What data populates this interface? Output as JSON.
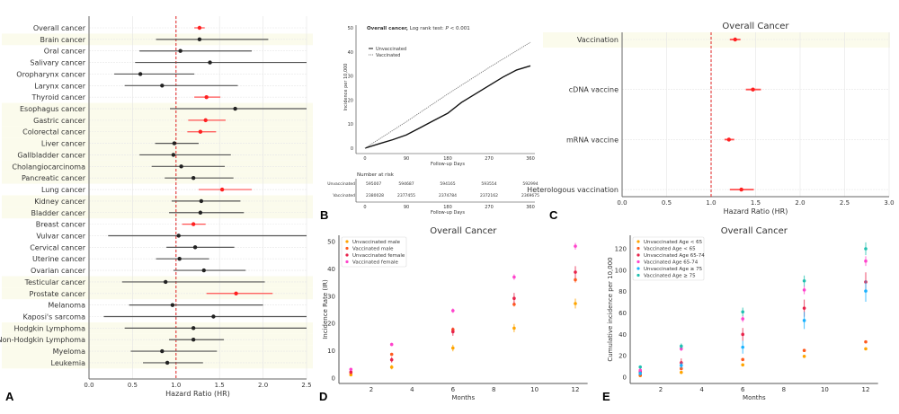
{
  "chart_data": [
    {
      "panel": "A",
      "type": "forest",
      "xlabel": "Hazard Ratio (HR)",
      "xlim": [
        0,
        2.5
      ],
      "xticks": [
        "0.0",
        "0.5",
        "1.0",
        "1.5",
        "2.0",
        "2.5"
      ],
      "reference_line": 1.0,
      "grid": true,
      "colors": {
        "significant": "#ff0000",
        "nonsignificant": "#000000",
        "band": "#fbfbee"
      },
      "rows": [
        {
          "label": "Overall cancer",
          "hr": 1.27,
          "lo": 1.21,
          "hi": 1.33,
          "sig": true,
          "band": false
        },
        {
          "label": "Brain cancer",
          "hr": 1.27,
          "lo": 0.77,
          "hi": 2.06,
          "sig": false,
          "band": true
        },
        {
          "label": "Oral cancer",
          "hr": 1.05,
          "lo": 0.58,
          "hi": 1.87,
          "sig": false,
          "band": false
        },
        {
          "label": "Salivary cancer",
          "hr": 1.39,
          "lo": 0.53,
          "hi": 2.5,
          "sig": false,
          "band": false
        },
        {
          "label": "Oropharynx cancer",
          "hr": 0.59,
          "lo": 0.29,
          "hi": 1.21,
          "sig": false,
          "band": false
        },
        {
          "label": "Larynx cancer",
          "hr": 0.84,
          "lo": 0.41,
          "hi": 1.71,
          "sig": false,
          "band": false
        },
        {
          "label": "Thyroid cancer",
          "hr": 1.35,
          "lo": 1.21,
          "hi": 1.51,
          "sig": true,
          "band": false
        },
        {
          "label": "Esophagus cancer",
          "hr": 1.68,
          "lo": 0.93,
          "hi": 2.5,
          "sig": false,
          "band": true
        },
        {
          "label": "Gastric cancer",
          "hr": 1.34,
          "lo": 1.14,
          "hi": 1.57,
          "sig": true,
          "band": true
        },
        {
          "label": "Colorectal cancer",
          "hr": 1.28,
          "lo": 1.13,
          "hi": 1.46,
          "sig": true,
          "band": true
        },
        {
          "label": "Liver cancer",
          "hr": 0.98,
          "lo": 0.76,
          "hi": 1.26,
          "sig": false,
          "band": true
        },
        {
          "label": "Gallbladder cancer",
          "hr": 0.97,
          "lo": 0.58,
          "hi": 1.63,
          "sig": false,
          "band": true
        },
        {
          "label": "Cholangiocarcinoma",
          "hr": 1.06,
          "lo": 0.72,
          "hi": 1.56,
          "sig": false,
          "band": true
        },
        {
          "label": "Pancreatic cancer",
          "hr": 1.2,
          "lo": 0.87,
          "hi": 1.66,
          "sig": false,
          "band": true
        },
        {
          "label": "Lung cancer",
          "hr": 1.53,
          "lo": 1.26,
          "hi": 1.87,
          "sig": true,
          "band": false
        },
        {
          "label": "Kidney cancer",
          "hr": 1.29,
          "lo": 0.95,
          "hi": 1.74,
          "sig": false,
          "band": true
        },
        {
          "label": "Bladder cancer",
          "hr": 1.28,
          "lo": 0.92,
          "hi": 1.78,
          "sig": false,
          "band": true
        },
        {
          "label": "Breast cancer",
          "hr": 1.2,
          "lo": 1.07,
          "hi": 1.34,
          "sig": true,
          "band": false
        },
        {
          "label": "Vulvar cancer",
          "hr": 1.03,
          "lo": 0.22,
          "hi": 2.5,
          "sig": false,
          "band": false
        },
        {
          "label": "Cervical cancer",
          "hr": 1.22,
          "lo": 0.89,
          "hi": 1.67,
          "sig": false,
          "band": false
        },
        {
          "label": "Uterine cancer",
          "hr": 1.04,
          "lo": 0.77,
          "hi": 1.38,
          "sig": false,
          "band": false
        },
        {
          "label": "Ovarian cancer",
          "hr": 1.32,
          "lo": 0.97,
          "hi": 1.8,
          "sig": false,
          "band": false
        },
        {
          "label": "Testicular cancer",
          "hr": 0.88,
          "lo": 0.38,
          "hi": 2.02,
          "sig": false,
          "band": true
        },
        {
          "label": "Prostate cancer",
          "hr": 1.69,
          "lo": 1.35,
          "hi": 2.11,
          "sig": true,
          "band": true
        },
        {
          "label": "Melanoma",
          "hr": 0.96,
          "lo": 0.46,
          "hi": 2.0,
          "sig": false,
          "band": false
        },
        {
          "label": "Kaposi's sarcoma",
          "hr": 1.43,
          "lo": 0.17,
          "hi": 2.5,
          "sig": false,
          "band": false
        },
        {
          "label": "Hodgkin Lymphoma",
          "hr": 1.2,
          "lo": 0.41,
          "hi": 2.5,
          "sig": false,
          "band": true
        },
        {
          "label": "Non-Hodgkin Lymphoma",
          "hr": 1.2,
          "lo": 0.92,
          "hi": 1.55,
          "sig": false,
          "band": true
        },
        {
          "label": "Myeloma",
          "hr": 0.84,
          "lo": 0.48,
          "hi": 1.47,
          "sig": false,
          "band": true
        },
        {
          "label": "Leukemia",
          "hr": 0.9,
          "lo": 0.62,
          "hi": 1.31,
          "sig": false,
          "band": true
        }
      ]
    },
    {
      "panel": "B",
      "type": "line",
      "title_bold": "Overall cancer,",
      "title_rest": " Log rank test: ",
      "title_p": "P",
      "title_pval": " < 0.001",
      "xlabel": "Follow-up Days",
      "ylabel": "Incidence per 10,000",
      "xlim": [
        0,
        360
      ],
      "ylim": [
        0,
        50
      ],
      "xticks": [
        "0",
        "90",
        "180",
        "270",
        "360"
      ],
      "yticks": [
        "0",
        "10",
        "20",
        "30",
        "40",
        "50"
      ],
      "legend": "top-left",
      "series": [
        {
          "name": "Unvaccinated",
          "style": "solid",
          "x": [
            0,
            30,
            60,
            90,
            120,
            150,
            180,
            210,
            240,
            270,
            300,
            330,
            360
          ],
          "y": [
            0,
            1.8,
            3.5,
            5.5,
            8.5,
            11.5,
            14.5,
            19,
            22.5,
            26,
            29.5,
            32.5,
            34.2
          ]
        },
        {
          "name": "Vaccinated",
          "style": "dotted",
          "x": [
            0,
            90,
            180,
            270,
            360
          ],
          "y": [
            0,
            11,
            22.5,
            33.5,
            44
          ]
        }
      ],
      "risk_table": {
        "title": "Number at risk",
        "xlabel": "Follow-up Days",
        "rows": [
          {
            "label": "Unvaccinated",
            "values": [
              "595007",
              "594687",
              "594165",
              "593554",
              "592994"
            ]
          },
          {
            "label": "Vaccinated",
            "values": [
              "2380028",
              "2377455",
              "2374784",
              "2372162",
              "2369675"
            ]
          }
        ]
      }
    },
    {
      "panel": "C",
      "type": "forest",
      "title": "Overall Cancer",
      "xlabel": "Hazard Ratio (HR)",
      "xlim": [
        0,
        3.0
      ],
      "xticks": [
        "0.0",
        "0.5",
        "1.0",
        "1.5",
        "2.0",
        "2.5",
        "3.0"
      ],
      "reference_line": 1.0,
      "grid": true,
      "rows": [
        {
          "label": "Vaccination",
          "hr": 1.27,
          "lo": 1.21,
          "hi": 1.33,
          "band": true
        },
        {
          "label": "cDNA vaccine",
          "hr": 1.47,
          "lo": 1.39,
          "hi": 1.56,
          "band": false
        },
        {
          "label": "mRNA vaccine",
          "hr": 1.2,
          "lo": 1.15,
          "hi": 1.26,
          "band": false
        },
        {
          "label": "Heterologous vaccination",
          "hr": 1.34,
          "lo": 1.21,
          "hi": 1.48,
          "band": false
        }
      ]
    },
    {
      "panel": "D",
      "type": "scatter",
      "title": "Overall Cancer",
      "xlabel": "Months",
      "ylabel": "Incidence Rate (IR)",
      "xlim": [
        0.5,
        12.5
      ],
      "ylim": [
        0,
        50
      ],
      "xticks": [
        "2",
        "4",
        "6",
        "8",
        "10",
        "12"
      ],
      "yticks": [
        "0",
        "10",
        "20",
        "30",
        "40",
        "50"
      ],
      "legend": "top-left",
      "x": [
        1,
        3,
        6,
        9,
        12
      ],
      "series": [
        {
          "name": "Unvaccinated male",
          "color": "#ffa500",
          "y": [
            1.2,
            4,
            11,
            18.3,
            27.3
          ],
          "err": [
            0.5,
            0.8,
            1.2,
            1.5,
            1.8
          ]
        },
        {
          "name": "Vaccinated male",
          "color": "#ff5a1f",
          "y": [
            2,
            8.7,
            17.8,
            27,
            36
          ],
          "err": [
            0.3,
            0.5,
            0.7,
            0.8,
            1
          ]
        },
        {
          "name": "Unvaccinated female",
          "color": "#e8234a",
          "y": [
            2.2,
            6.7,
            17,
            29.2,
            38.8
          ],
          "err": [
            0.6,
            1,
            1.5,
            2,
            2.2
          ]
        },
        {
          "name": "Vaccinated female",
          "color": "#ff44cc",
          "y": [
            3.2,
            12.3,
            24.7,
            37,
            48.3
          ],
          "err": [
            0.4,
            0.6,
            0.8,
            1,
            1.2
          ]
        }
      ]
    },
    {
      "panel": "E",
      "type": "scatter",
      "title": "Overall Cancer",
      "xlabel": "Months",
      "ylabel": "Cumulative incidence per 10,000",
      "xlim": [
        0.5,
        12.5
      ],
      "ylim": [
        -5,
        130
      ],
      "xticks": [
        "2",
        "4",
        "6",
        "8",
        "10",
        "12"
      ],
      "yticks": [
        "0",
        "20",
        "40",
        "60",
        "80",
        "100",
        "120"
      ],
      "legend": "top-left",
      "x": [
        1,
        3,
        6,
        9,
        12
      ],
      "series": [
        {
          "name": "Unvaccinated Age < 65",
          "color": "#ffa500",
          "y": [
            1.5,
            4.5,
            11.5,
            19.5,
            26.5
          ],
          "err": [
            0.5,
            0.8,
            1,
            1,
            1
          ]
        },
        {
          "name": "Vaccinated Age < 65",
          "color": "#ff5a1f",
          "y": [
            2,
            8,
            16.5,
            25,
            33
          ],
          "err": [
            0.3,
            0.5,
            0.6,
            0.7,
            0.8
          ]
        },
        {
          "name": "Unvaccinated Age 65-74",
          "color": "#e8234a",
          "y": [
            5,
            13.5,
            40,
            64.5,
            89
          ],
          "err": [
            2,
            4,
            6,
            8,
            9
          ]
        },
        {
          "name": "Vaccinated Age 65-74",
          "color": "#ff44cc",
          "y": [
            6.5,
            26.5,
            54.5,
            81.5,
            108.5
          ],
          "err": [
            1,
            2,
            3,
            4,
            4.5
          ]
        },
        {
          "name": "Unvaccinated Age ≥ 75",
          "color": "#1ab2ff",
          "y": [
            3.5,
            11,
            28,
            53,
            80.5
          ],
          "err": [
            2,
            3,
            6,
            8,
            10
          ]
        },
        {
          "name": "Vaccinated Age ≥ 75",
          "color": "#20c0b0",
          "y": [
            9.5,
            29,
            61,
            90,
            120
          ],
          "err": [
            1.5,
            2.5,
            4,
            5,
            6
          ]
        }
      ]
    }
  ],
  "panel_labels": [
    "A",
    "B",
    "C",
    "D",
    "E"
  ]
}
